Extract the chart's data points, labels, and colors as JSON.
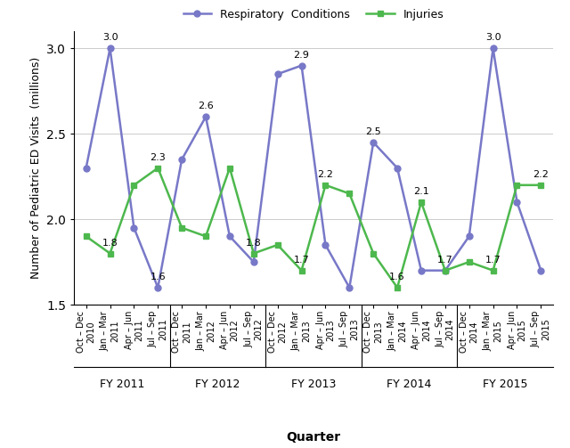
{
  "respiratory": [
    2.3,
    3.0,
    1.95,
    1.6,
    2.35,
    2.6,
    1.9,
    1.75,
    2.85,
    2.9,
    1.85,
    1.6,
    2.45,
    2.3,
    1.7,
    1.7,
    1.9,
    3.0,
    2.1,
    1.7
  ],
  "injuries": [
    1.9,
    1.8,
    2.2,
    2.3,
    1.95,
    1.9,
    2.3,
    1.8,
    1.85,
    1.7,
    2.2,
    2.15,
    1.8,
    1.6,
    2.1,
    1.7,
    1.75,
    1.7,
    2.2,
    2.2
  ],
  "resp_annotate": {
    "1": "3.0",
    "5": "2.6",
    "9": "2.9",
    "12": "2.5",
    "17": "3.0",
    "3": "1.6"
  },
  "inj_annotate": {
    "1": "1.8",
    "3": "2.3",
    "7": "1.8",
    "9": "1.7",
    "10": "2.2",
    "13": "1.6",
    "14": "2.1",
    "15": "1.7",
    "17": "1.7",
    "19": "2.2"
  },
  "tick_labels": [
    "Oct – Dec\n2010",
    "Jan – Mar\n2011",
    "Apr – Jun\n2011",
    "Jul – Sep\n2011",
    "Oct – Dec\n2011",
    "Jan – Mar\n2012",
    "Apr – Jun\n2012",
    "Jul – Sep\n2012",
    "Oct – Dec\n2012",
    "Jan – Mar\n2013",
    "Apr – Jun\n2013",
    "Jul – Sep\n2013",
    "Oct – Dec\n2013",
    "Jan – Mar\n2014",
    "Apr – Jun\n2014",
    "Jul – Sep\n2014",
    "Oct – Dec\n2014",
    "Jan – Mar\n2015",
    "Apr – Jun\n2015",
    "Jul – Sep\n2015"
  ],
  "fy_labels": [
    "FY 2011",
    "FY 2012",
    "FY 2013",
    "FY 2014",
    "FY 2015"
  ],
  "fy_positions": [
    1.5,
    5.5,
    9.5,
    13.5,
    17.5
  ],
  "fy_boundaries": [
    3.5,
    7.5,
    11.5,
    15.5
  ],
  "resp_color": "#7878c8",
  "inj_color": "#4db84d",
  "ylabel": "Number of Pediatric ED Visits  (millions)",
  "xlabel": "Quarter",
  "ylim": [
    1.5,
    3.1
  ],
  "yticks": [
    1.5,
    2.0,
    2.5,
    3.0
  ],
  "legend_resp": "Respiratory  Conditions",
  "legend_inj": "Injuries"
}
